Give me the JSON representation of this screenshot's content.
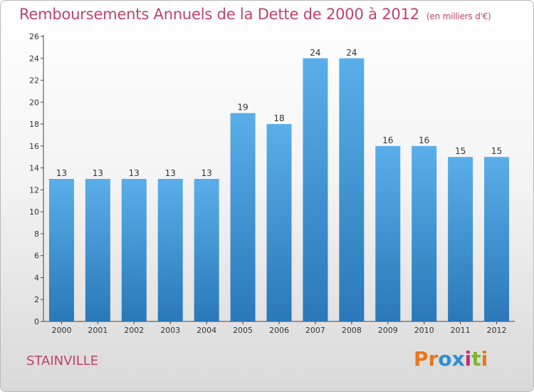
{
  "header": {
    "title": "Remboursements Annuels de la Dette de 2000 à 2012",
    "subtitle": "(en milliers d'€)"
  },
  "footer": {
    "town": "STAINVILLE",
    "logo": "Proxiti"
  },
  "colors": {
    "title": "#c0436a",
    "bar_top": "#5aaeea",
    "bar_bottom": "#2a78b8",
    "logo_letters": [
      "#e8771d",
      "#e8771d",
      "#2b8fd4",
      "#2b8fd4",
      "#c72d72",
      "#7bb82a",
      "#e8771d"
    ]
  },
  "chart_data": {
    "type": "bar",
    "categories": [
      "2000",
      "2001",
      "2002",
      "2003",
      "2004",
      "2005",
      "2006",
      "2007",
      "2008",
      "2009",
      "2010",
      "2011",
      "2012"
    ],
    "values": [
      13,
      13,
      13,
      13,
      13,
      19,
      18,
      24,
      24,
      16,
      16,
      15,
      15
    ],
    "ylim": [
      0,
      26
    ],
    "yticks": [
      0,
      2,
      4,
      6,
      8,
      10,
      12,
      14,
      16,
      18,
      20,
      22,
      24,
      26
    ],
    "grid": false
  }
}
